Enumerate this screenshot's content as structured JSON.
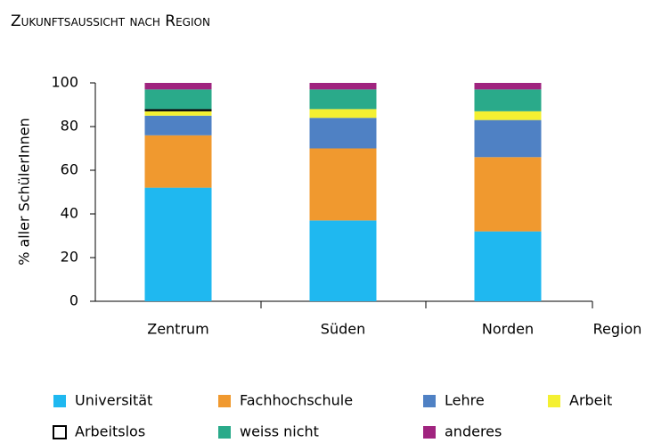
{
  "chart_data": {
    "type": "stacked_bar",
    "title": "Zukunftsaussicht nach Region",
    "y_label": "% aller SchülerInnen",
    "x_label": "Region",
    "categories": [
      "Zentrum",
      "Süden",
      "Norden"
    ],
    "series": [
      {
        "name": "Universität",
        "color": "#1fb8f0",
        "values": [
          52,
          37,
          32
        ]
      },
      {
        "name": "Fachhochschule",
        "color": "#f0992f",
        "values": [
          24,
          33,
          34
        ]
      },
      {
        "name": "Lehre",
        "color": "#4f81c4",
        "values": [
          9,
          14,
          17
        ]
      },
      {
        "name": "Arbeit",
        "color": "#f4f032",
        "values": [
          2,
          4,
          4
        ]
      },
      {
        "name": "Arbeitslos",
        "color": "#000000",
        "values": [
          1,
          0,
          0
        ]
      },
      {
        "name": "weiss nicht",
        "color": "#2aaa8a",
        "values": [
          9,
          9,
          10
        ]
      },
      {
        "name": "anderes",
        "color": "#a0247f",
        "values": [
          3,
          3,
          3
        ]
      }
    ],
    "ylim": [
      0,
      100
    ],
    "yticks": [
      0,
      20,
      40,
      60,
      80,
      100
    ],
    "legend": "bottom"
  }
}
